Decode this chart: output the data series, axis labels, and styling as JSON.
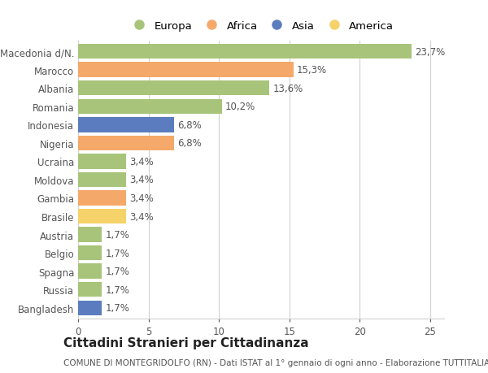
{
  "categories": [
    "Macedonia d/N.",
    "Marocco",
    "Albania",
    "Romania",
    "Indonesia",
    "Nigeria",
    "Ucraina",
    "Moldova",
    "Gambia",
    "Brasile",
    "Austria",
    "Belgio",
    "Spagna",
    "Russia",
    "Bangladesh"
  ],
  "values": [
    23.7,
    15.3,
    13.6,
    10.2,
    6.8,
    6.8,
    3.4,
    3.4,
    3.4,
    3.4,
    1.7,
    1.7,
    1.7,
    1.7,
    1.7
  ],
  "labels": [
    "23,7%",
    "15,3%",
    "13,6%",
    "10,2%",
    "6,8%",
    "6,8%",
    "3,4%",
    "3,4%",
    "3,4%",
    "3,4%",
    "1,7%",
    "1,7%",
    "1,7%",
    "1,7%",
    "1,7%"
  ],
  "continents": [
    "Europa",
    "Africa",
    "Europa",
    "Europa",
    "Asia",
    "Africa",
    "Europa",
    "Europa",
    "Africa",
    "America",
    "Europa",
    "Europa",
    "Europa",
    "Europa",
    "Asia"
  ],
  "colors": {
    "Europa": "#a8c47a",
    "Africa": "#f4a96a",
    "Asia": "#5b7dbf",
    "America": "#f5d26a"
  },
  "legend_order": [
    "Europa",
    "Africa",
    "Asia",
    "America"
  ],
  "title": "Cittadini Stranieri per Cittadinanza",
  "subtitle": "COMUNE DI MONTEGRIDOLFO (RN) - Dati ISTAT al 1° gennaio di ogni anno - Elaborazione TUTTITALIA.IT",
  "xlim": [
    0,
    26
  ],
  "xticks": [
    0,
    5,
    10,
    15,
    20,
    25
  ],
  "background_color": "#ffffff",
  "grid_color": "#d0d0d0",
  "bar_height": 0.82,
  "title_fontsize": 11,
  "subtitle_fontsize": 7.5,
  "tick_fontsize": 8.5,
  "label_fontsize": 8.5,
  "legend_fontsize": 9.5
}
